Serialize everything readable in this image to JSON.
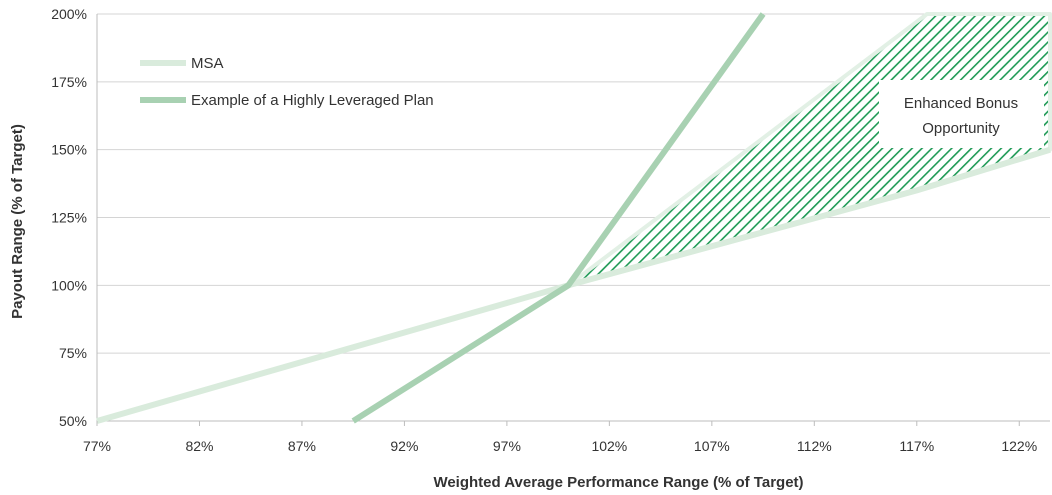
{
  "chart_data": {
    "type": "line",
    "title": "",
    "xlabel": "Weighted Average Performance Range (% of Target)",
    "ylabel": "Payout Range (% of Target)",
    "xlim": [
      77,
      123.5
    ],
    "ylim": [
      50,
      200
    ],
    "x_ticks": [
      77,
      82,
      87,
      92,
      97,
      102,
      107,
      112,
      117,
      122
    ],
    "x_tick_labels": [
      "77%",
      "82%",
      "87%",
      "92%",
      "97%",
      "102%",
      "107%",
      "112%",
      "117%",
      "122%"
    ],
    "y_ticks": [
      50,
      75,
      100,
      125,
      150,
      175,
      200
    ],
    "y_tick_labels": [
      "50%",
      "75%",
      "100%",
      "125%",
      "150%",
      "175%",
      "200%"
    ],
    "grid": "horizontal",
    "legend_position": "top-left",
    "series": [
      {
        "name": "MSA",
        "color": "#d9ebdc",
        "points": [
          [
            77,
            50
          ],
          [
            100,
            100
          ],
          [
            117,
            135
          ],
          [
            123.5,
            150
          ]
        ]
      },
      {
        "name": "Example of a Highly Leveraged Plan",
        "color": "#a8d1b2",
        "points": [
          [
            89.5,
            50
          ],
          [
            100,
            100
          ],
          [
            109.5,
            200
          ]
        ]
      }
    ],
    "shaded_region": {
      "label": "Enhanced Bonus Opportunity",
      "color": "#1e9a55",
      "upper": [
        [
          100,
          100
        ],
        [
          117.5,
          200
        ],
        [
          123.5,
          200
        ]
      ],
      "lower": [
        [
          100,
          100
        ],
        [
          117,
          135
        ],
        [
          123.5,
          150
        ]
      ]
    },
    "annotation": {
      "lines": [
        "Enhanced Bonus",
        "Opportunity"
      ]
    }
  }
}
